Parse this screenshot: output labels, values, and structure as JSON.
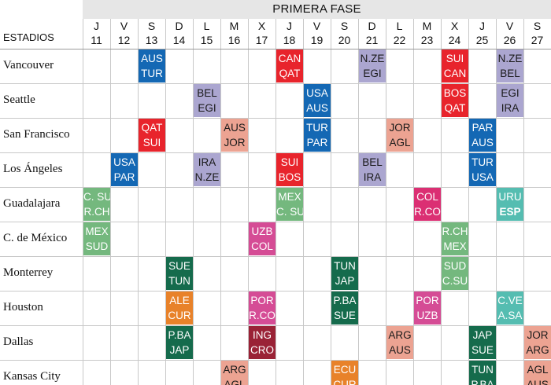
{
  "header": {
    "phase": "PRIMERA FASE",
    "stadiums_label": "ESTADIOS"
  },
  "days": [
    {
      "letter": "J",
      "num": "11"
    },
    {
      "letter": "V",
      "num": "12"
    },
    {
      "letter": "S",
      "num": "13"
    },
    {
      "letter": "D",
      "num": "14"
    },
    {
      "letter": "L",
      "num": "15"
    },
    {
      "letter": "M",
      "num": "16"
    },
    {
      "letter": "X",
      "num": "17"
    },
    {
      "letter": "J",
      "num": "18"
    },
    {
      "letter": "V",
      "num": "19"
    },
    {
      "letter": "S",
      "num": "20"
    },
    {
      "letter": "D",
      "num": "21"
    },
    {
      "letter": "L",
      "num": "22"
    },
    {
      "letter": "M",
      "num": "23"
    },
    {
      "letter": "X",
      "num": "24"
    },
    {
      "letter": "J",
      "num": "25"
    },
    {
      "letter": "V",
      "num": "26"
    },
    {
      "letter": "S",
      "num": "27"
    }
  ],
  "stadiums": [
    "Vancouver",
    "Seattle",
    "San Francisco",
    "Los Ángeles",
    "Guadalajara",
    "C. de México",
    "Monterrey",
    "Houston",
    "Dallas",
    "Kansas City"
  ],
  "group_colors": {
    "A": "#74b87e",
    "B": "#e8242c",
    "C": "#db2f73",
    "D": "#1468b4",
    "E": "#e8822a",
    "F": "#156b4c",
    "G": "#aba6d0",
    "H": "#55bdb1",
    "J": "#eca392",
    "K": "#9a2236",
    "L": "#d54c95"
  },
  "matches": [
    {
      "stadium": 0,
      "day": 2,
      "line1": "AUS",
      "line2": "TUR",
      "group": "D"
    },
    {
      "stadium": 0,
      "day": 7,
      "line1": "CAN",
      "line2": "QAT",
      "group": "B"
    },
    {
      "stadium": 0,
      "day": 10,
      "line1": "N.ZE",
      "line2": "EGI",
      "group": "G"
    },
    {
      "stadium": 0,
      "day": 13,
      "line1": "SUI",
      "line2": "CAN",
      "group": "B"
    },
    {
      "stadium": 0,
      "day": 15,
      "line1": "N.ZE",
      "line2": "BEL",
      "group": "G"
    },
    {
      "stadium": 1,
      "day": 4,
      "line1": "BEL",
      "line2": "EGI",
      "group": "G"
    },
    {
      "stadium": 1,
      "day": 8,
      "line1": "USA",
      "line2": "AUS",
      "group": "D"
    },
    {
      "stadium": 1,
      "day": 13,
      "line1": "BOS",
      "line2": "QAT",
      "group": "B"
    },
    {
      "stadium": 1,
      "day": 15,
      "line1": "EGI",
      "line2": "IRA",
      "group": "G"
    },
    {
      "stadium": 2,
      "day": 2,
      "line1": "QAT",
      "line2": "SUI",
      "group": "B"
    },
    {
      "stadium": 2,
      "day": 5,
      "line1": "AUS",
      "line2": "JOR",
      "group": "J"
    },
    {
      "stadium": 2,
      "day": 8,
      "line1": "TUR",
      "line2": "PAR",
      "group": "D"
    },
    {
      "stadium": 2,
      "day": 11,
      "line1": "JOR",
      "line2": "AGL",
      "group": "J"
    },
    {
      "stadium": 2,
      "day": 14,
      "line1": "PAR",
      "line2": "AUS",
      "group": "D"
    },
    {
      "stadium": 3,
      "day": 1,
      "line1": "USA",
      "line2": "PAR",
      "group": "D"
    },
    {
      "stadium": 3,
      "day": 4,
      "line1": "IRA",
      "line2": "N.ZE",
      "group": "G"
    },
    {
      "stadium": 3,
      "day": 7,
      "line1": "SUI",
      "line2": "BOS",
      "group": "B"
    },
    {
      "stadium": 3,
      "day": 10,
      "line1": "BEL",
      "line2": "IRA",
      "group": "G"
    },
    {
      "stadium": 3,
      "day": 14,
      "line1": "TUR",
      "line2": "USA",
      "group": "D"
    },
    {
      "stadium": 4,
      "day": 0,
      "line1": "C. SU",
      "line2": "R.CH",
      "group": "A"
    },
    {
      "stadium": 4,
      "day": 7,
      "line1": "MEX",
      "line2": "C. SU",
      "group": "A"
    },
    {
      "stadium": 4,
      "day": 12,
      "line1": "COL",
      "line2": "R.CO",
      "group": "C"
    },
    {
      "stadium": 4,
      "day": 15,
      "line1": "URU",
      "line2": "ESP",
      "group": "H",
      "bold2": true
    },
    {
      "stadium": 5,
      "day": 0,
      "line1": "MEX",
      "line2": "SUD",
      "group": "A"
    },
    {
      "stadium": 5,
      "day": 6,
      "line1": "UZB",
      "line2": "COL",
      "group": "L"
    },
    {
      "stadium": 5,
      "day": 13,
      "line1": "R.CH",
      "line2": "MEX",
      "group": "A"
    },
    {
      "stadium": 6,
      "day": 3,
      "line1": "SUE",
      "line2": "TUN",
      "group": "F"
    },
    {
      "stadium": 6,
      "day": 9,
      "line1": "TUN",
      "line2": "JAP",
      "group": "F"
    },
    {
      "stadium": 6,
      "day": 13,
      "line1": "SUD",
      "line2": "C.SU",
      "group": "A"
    },
    {
      "stadium": 7,
      "day": 3,
      "line1": "ALE",
      "line2": "CUR",
      "group": "E"
    },
    {
      "stadium": 7,
      "day": 6,
      "line1": "POR",
      "line2": "R.CO",
      "group": "L"
    },
    {
      "stadium": 7,
      "day": 9,
      "line1": "P.BA",
      "line2": "SUE",
      "group": "F"
    },
    {
      "stadium": 7,
      "day": 12,
      "line1": "POR",
      "line2": "UZB",
      "group": "L"
    },
    {
      "stadium": 7,
      "day": 15,
      "line1": "C.VE",
      "line2": "A.SA",
      "group": "H"
    },
    {
      "stadium": 8,
      "day": 3,
      "line1": "P.BA",
      "line2": "JAP",
      "group": "F"
    },
    {
      "stadium": 8,
      "day": 6,
      "line1": "ING",
      "line2": "CRO",
      "group": "K"
    },
    {
      "stadium": 8,
      "day": 11,
      "line1": "ARG",
      "line2": "AUS",
      "group": "J"
    },
    {
      "stadium": 8,
      "day": 14,
      "line1": "JAP",
      "line2": "SUE",
      "group": "F"
    },
    {
      "stadium": 8,
      "day": 16,
      "line1": "JOR",
      "line2": "ARG",
      "group": "J"
    },
    {
      "stadium": 9,
      "day": 5,
      "line1": "ARG",
      "line2": "AGL",
      "group": "J"
    },
    {
      "stadium": 9,
      "day": 9,
      "line1": "ECU",
      "line2": "CUR",
      "group": "E"
    },
    {
      "stadium": 9,
      "day": 14,
      "line1": "TUN",
      "line2": "P.BA",
      "group": "F"
    },
    {
      "stadium": 9,
      "day": 16,
      "line1": "AGL",
      "line2": "AUS",
      "group": "J"
    }
  ]
}
